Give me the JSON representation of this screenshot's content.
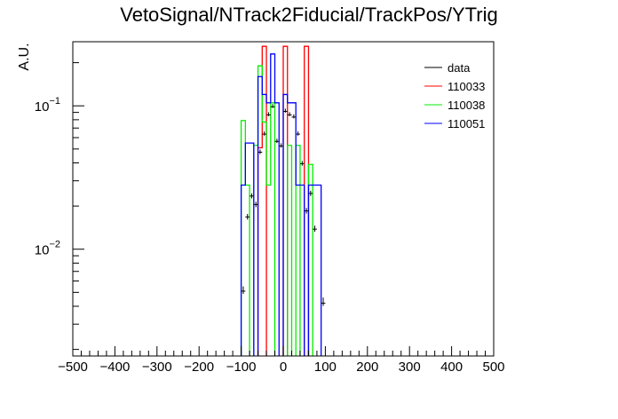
{
  "chart_data": {
    "type": "step-histogram",
    "title": "VetoSignal/NTrack2Fiducial/TrackPos/YTrig",
    "xlabel": "",
    "ylabel": "A.U.",
    "xlim": [
      -500,
      500
    ],
    "ylog": true,
    "ylim": [
      0.0018,
      0.28
    ],
    "x_ticks": [
      -500,
      -400,
      -300,
      -200,
      -100,
      0,
      100,
      200,
      300,
      400,
      500
    ],
    "y_ticks": [
      {
        "value": 0.1,
        "base": "10",
        "exp": "−1"
      },
      {
        "value": 0.01,
        "base": "10",
        "exp": "−2"
      }
    ],
    "legend_position": "top-right",
    "legend": [
      {
        "name": "data",
        "color": "#000000"
      },
      {
        "name": "110033",
        "color": "#ff0000"
      },
      {
        "name": "110038",
        "color": "#00ee00"
      },
      {
        "name": "110051",
        "color": "#0000ff"
      }
    ],
    "series": [
      {
        "name": "110033",
        "color": "#ff0000",
        "bins": [
          {
            "x0": -60,
            "x1": -50,
            "y": 0.051
          },
          {
            "x0": -50,
            "x1": -40,
            "y": 0.26
          },
          {
            "x0": 0,
            "x1": 10,
            "y": 0.26
          },
          {
            "x0": 50,
            "x1": 60,
            "y": 0.26
          }
        ]
      },
      {
        "name": "110038",
        "color": "#00ee00",
        "bins": [
          {
            "x0": -100,
            "x1": -90,
            "y": 0.079
          },
          {
            "x0": -90,
            "x1": -80,
            "y": 0.028
          },
          {
            "x0": -70,
            "x1": -60,
            "y": 0.053
          },
          {
            "x0": -60,
            "x1": -50,
            "y": 0.19
          },
          {
            "x0": -50,
            "x1": -40,
            "y": 0.077
          },
          {
            "x0": -40,
            "x1": -30,
            "y": 0.028
          },
          {
            "x0": -30,
            "x1": -20,
            "y": 0.105
          },
          {
            "x0": 10,
            "x1": 20,
            "y": 0.053
          },
          {
            "x0": 30,
            "x1": 40,
            "y": 0.053
          },
          {
            "x0": 60,
            "x1": 70,
            "y": 0.039
          }
        ]
      },
      {
        "name": "110051",
        "color": "#0000ff",
        "bins": [
          {
            "x0": -100,
            "x1": -90,
            "y": 0.028
          },
          {
            "x0": -90,
            "x1": -80,
            "y": 0.055
          },
          {
            "x0": -80,
            "x1": -70,
            "y": 0.055
          },
          {
            "x0": -60,
            "x1": -50,
            "y": 0.16
          },
          {
            "x0": -50,
            "x1": -40,
            "y": 0.12
          },
          {
            "x0": -40,
            "x1": -30,
            "y": 0.105
          },
          {
            "x0": -30,
            "x1": -20,
            "y": 0.23
          },
          {
            "x0": -20,
            "x1": -10,
            "y": 0.105
          },
          {
            "x0": 0,
            "x1": 10,
            "y": 0.12
          },
          {
            "x0": 10,
            "x1": 20,
            "y": 0.105
          },
          {
            "x0": 20,
            "x1": 30,
            "y": 0.105
          },
          {
            "x0": 30,
            "x1": 40,
            "y": 0.028
          },
          {
            "x0": 40,
            "x1": 50,
            "y": 0.028
          },
          {
            "x0": 60,
            "x1": 70,
            "y": 0.028
          },
          {
            "x0": 70,
            "x1": 80,
            "y": 0.028
          },
          {
            "x0": 80,
            "x1": 90,
            "y": 0.028
          }
        ]
      }
    ],
    "data_points": {
      "name": "data",
      "color": "#000000",
      "x_halfwidth": 5,
      "points": [
        {
          "x": -95,
          "y": 0.0051,
          "err": 0.0004
        },
        {
          "x": -85,
          "y": 0.0168,
          "err": 0.0008
        },
        {
          "x": -75,
          "y": 0.0235,
          "err": 0.0009
        },
        {
          "x": -65,
          "y": 0.0205,
          "err": 0.0009
        },
        {
          "x": -55,
          "y": 0.0475,
          "err": 0.0014
        },
        {
          "x": -45,
          "y": 0.0635,
          "err": 0.0016
        },
        {
          "x": -35,
          "y": 0.0865,
          "err": 0.0018
        },
        {
          "x": -25,
          "y": 0.0985,
          "err": 0.002
        },
        {
          "x": -15,
          "y": 0.0565,
          "err": 0.0015
        },
        {
          "x": -5,
          "y": 0.0525,
          "err": 0.0015
        },
        {
          "x": 5,
          "y": 0.0915,
          "err": 0.0019
        },
        {
          "x": 15,
          "y": 0.0865,
          "err": 0.0018
        },
        {
          "x": 25,
          "y": 0.0835,
          "err": 0.0018
        },
        {
          "x": 35,
          "y": 0.0635,
          "err": 0.0016
        },
        {
          "x": 45,
          "y": 0.0395,
          "err": 0.0013
        },
        {
          "x": 55,
          "y": 0.0185,
          "err": 0.0009
        },
        {
          "x": 65,
          "y": 0.0245,
          "err": 0.001
        },
        {
          "x": 75,
          "y": 0.0138,
          "err": 0.0008
        },
        {
          "x": 95,
          "y": 0.0042,
          "err": 0.0004
        }
      ]
    }
  }
}
